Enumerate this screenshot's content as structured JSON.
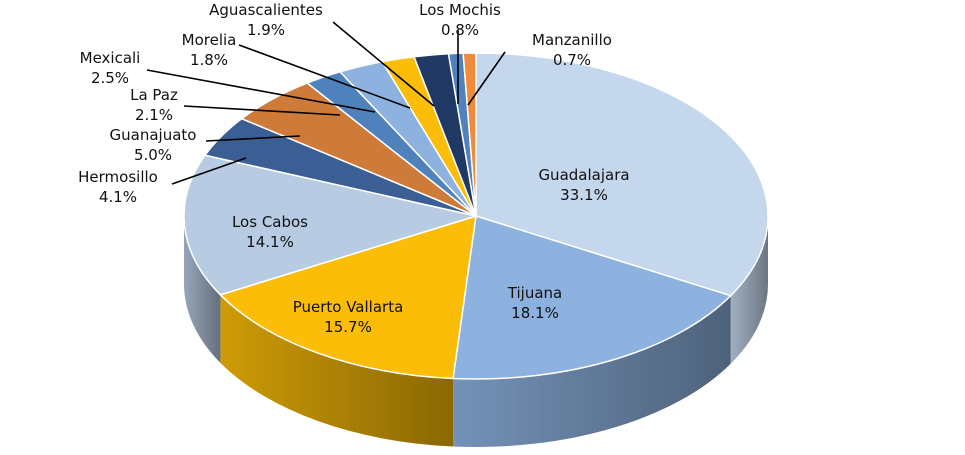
{
  "chart_data": {
    "type": "pie",
    "title": "",
    "units": "%",
    "slices": [
      {
        "label": "Guadalajara",
        "value": 33.1,
        "value_label": "33.1%",
        "color": "#c4d7ed"
      },
      {
        "label": "Tijuana",
        "value": 18.1,
        "value_label": "18.1%",
        "color": "#8db2e0"
      },
      {
        "label": "Puerto Vallarta",
        "value": 15.7,
        "value_label": "15.7%",
        "color": "#fbbd07"
      },
      {
        "label": "Los Cabos",
        "value": 14.1,
        "value_label": "14.1%",
        "color": "#b7cbe3"
      },
      {
        "label": "Hermosillo",
        "value": 4.1,
        "value_label": "4.1%",
        "color": "#3b5f94"
      },
      {
        "label": "Guanajuato",
        "value": 5.0,
        "value_label": "5.0%",
        "color": "#ce7b39"
      },
      {
        "label": "La Paz",
        "value": 2.1,
        "value_label": "2.1%",
        "color": "#4f81bd"
      },
      {
        "label": "Mexicali",
        "value": 2.5,
        "value_label": "2.5%",
        "color": "#8db2e0"
      },
      {
        "label": "Morelia",
        "value": 1.8,
        "value_label": "1.8%",
        "color": "#fbbd07"
      },
      {
        "label": "Aguascalientes",
        "value": 1.9,
        "value_label": "1.9%",
        "color": "#1f3864"
      },
      {
        "label": "Los Mochis",
        "value": 0.8,
        "value_label": "0.8%",
        "color": "#4f81bd"
      },
      {
        "label": "Manzanillo",
        "value": 0.7,
        "value_label": "0.7%",
        "color": "#f08a3c"
      }
    ]
  }
}
